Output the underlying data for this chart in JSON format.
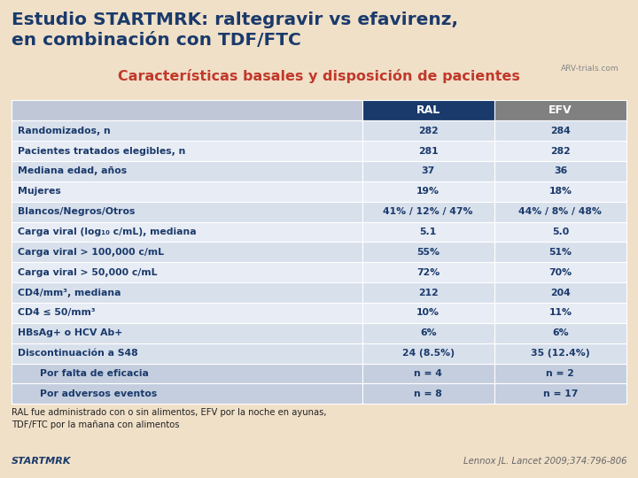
{
  "title_main": "Estudio STARTMRK: raltegravir vs efavirenz,\nen combinación con TDF/FTC",
  "title_sub": "Características basales y disposición de pacientes",
  "bg_color": "#f0e0c8",
  "title_main_color": "#1a3a6b",
  "title_sub_color": "#c0392b",
  "header_ral_color": "#1a3a6b",
  "header_efv_color": "#808080",
  "col_headers": [
    "RAL",
    "EFV"
  ],
  "rows": [
    [
      "Randomizados, n",
      "282",
      "284",
      false
    ],
    [
      "Pacientes tratados elegibles, n",
      "281",
      "282",
      false
    ],
    [
      "Mediana edad, años",
      "37",
      "36",
      false
    ],
    [
      "Mujeres",
      "19%",
      "18%",
      false
    ],
    [
      "Blancos/Negros/Otros",
      "41% / 12% / 47%",
      "44% / 8% / 48%",
      false
    ],
    [
      "Carga viral (log₁₀ c/mL), mediana",
      "5.1",
      "5.0",
      false
    ],
    [
      "Carga viral > 100,000 c/mL",
      "55%",
      "51%",
      false
    ],
    [
      "Carga viral > 50,000 c/mL",
      "72%",
      "70%",
      false
    ],
    [
      "CD4/mm³, mediana",
      "212",
      "204",
      false
    ],
    [
      "CD4 ≤ 50/mm³",
      "10%",
      "11%",
      false
    ],
    [
      "HBsAg+ o HCV Ab+",
      "6%",
      "6%",
      false
    ],
    [
      "Discontinuación a S48",
      "24 (8.5%)",
      "35 (12.4%)",
      false
    ],
    [
      "    Por falta de eficacia",
      "n = 4",
      "n = 2",
      true
    ],
    [
      "    Por adversos eventos",
      "n = 8",
      "n = 17",
      true
    ]
  ],
  "row_bg_colors": [
    "#d8e0ec",
    "#e8ecf4",
    "#d8e0ec",
    "#e8ecf4",
    "#d8e0ec",
    "#e8ecf4",
    "#d8e0ec",
    "#e8ecf4",
    "#d8e0ec",
    "#e8ecf4",
    "#d8e0ec",
    "#d8e0ec",
    "#c4cede",
    "#c4cede"
  ],
  "header_row_bg": "#c0c8d8",
  "footnote": "RAL fue administrado con o sin alimentos, EFV por la noche en ayunas,\nTDF/FTC por la mañana con alimentos",
  "reference": "Lennox JL. Lancet 2009;374:796-806",
  "startmrk_text": "STARTMRK",
  "cell_text_color": "#1a3a6b",
  "header_text_color": "#ffffff",
  "arv_text": "ARV-trials.com"
}
